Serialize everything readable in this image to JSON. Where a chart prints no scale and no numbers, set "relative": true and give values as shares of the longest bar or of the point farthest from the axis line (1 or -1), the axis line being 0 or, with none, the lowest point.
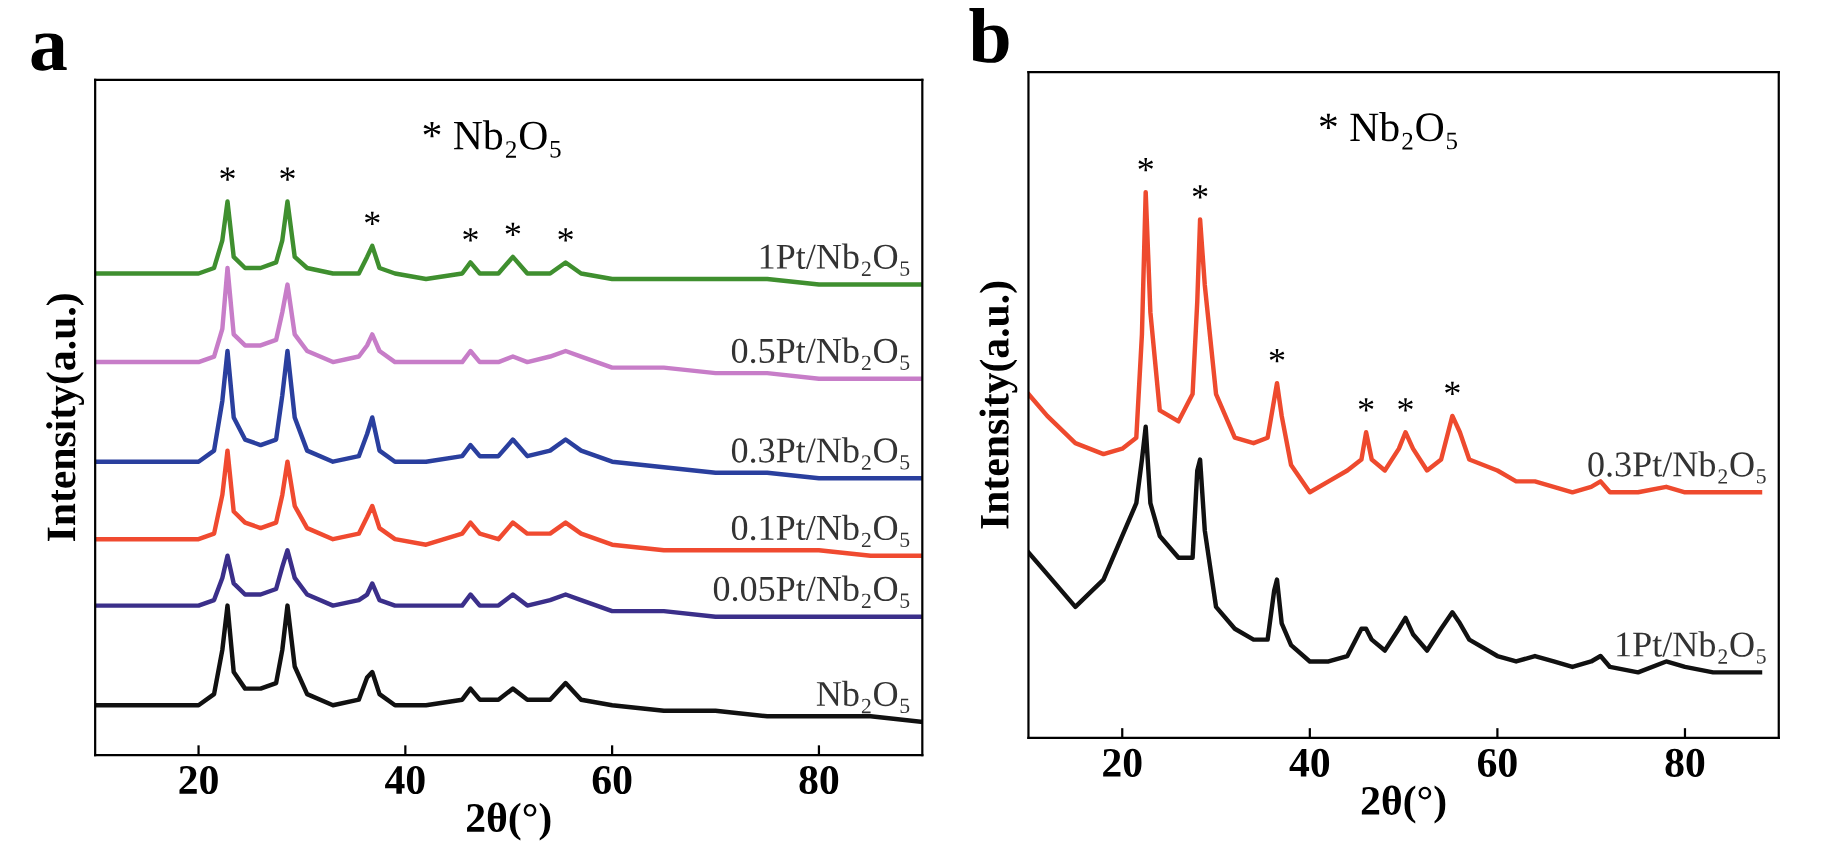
{
  "chart_data": [
    {
      "type": "line",
      "title": "a",
      "xlabel": "2θ(°)",
      "ylabel": "Intensity(a.u.)",
      "relative": true,
      "tick_labels": "x",
      "xlim": [
        10,
        90
      ],
      "xticks": [
        20,
        40,
        60,
        80
      ],
      "x": [
        10,
        15,
        20,
        21.5,
        22.3,
        22.8,
        23.4,
        24.5,
        26,
        27.5,
        28.1,
        28.6,
        29.3,
        30.5,
        33,
        35.5,
        36.3,
        36.8,
        37.5,
        39,
        42,
        45.5,
        46.3,
        47.2,
        49,
        50.4,
        51.8,
        54,
        55.5,
        57,
        60,
        65,
        70,
        75,
        80,
        85,
        90
      ],
      "series": [
        {
          "name": "1Pt/Nb₂O₅",
          "color": "#3f8f2f",
          "values": [
            0.87,
            0.87,
            0.87,
            0.88,
            0.93,
            1.0,
            0.9,
            0.88,
            0.88,
            0.89,
            0.93,
            1.0,
            0.9,
            0.88,
            0.87,
            0.87,
            0.9,
            0.92,
            0.88,
            0.87,
            0.86,
            0.87,
            0.89,
            0.87,
            0.87,
            0.9,
            0.87,
            0.87,
            0.89,
            0.87,
            0.86,
            0.86,
            0.86,
            0.86,
            0.85,
            0.85,
            0.85
          ]
        },
        {
          "name": "0.5Pt/Nb₂O₅",
          "color": "#c77dc8",
          "values": [
            0.71,
            0.71,
            0.71,
            0.72,
            0.77,
            0.88,
            0.76,
            0.74,
            0.74,
            0.75,
            0.8,
            0.85,
            0.76,
            0.73,
            0.71,
            0.72,
            0.74,
            0.76,
            0.73,
            0.71,
            0.71,
            0.71,
            0.73,
            0.71,
            0.71,
            0.72,
            0.71,
            0.72,
            0.73,
            0.72,
            0.7,
            0.7,
            0.69,
            0.69,
            0.68,
            0.68,
            0.68
          ]
        },
        {
          "name": "0.3Pt/Nb₂O₅",
          "color": "#2a3f9e",
          "values": [
            0.53,
            0.53,
            0.53,
            0.55,
            0.64,
            0.73,
            0.61,
            0.57,
            0.56,
            0.57,
            0.65,
            0.73,
            0.61,
            0.55,
            0.53,
            0.54,
            0.58,
            0.61,
            0.55,
            0.53,
            0.53,
            0.54,
            0.56,
            0.54,
            0.54,
            0.57,
            0.54,
            0.55,
            0.57,
            0.55,
            0.53,
            0.52,
            0.51,
            0.51,
            0.5,
            0.5,
            0.5
          ]
        },
        {
          "name": "0.1Pt/Nb₂O₅",
          "color": "#f04a30",
          "values": [
            0.39,
            0.39,
            0.39,
            0.4,
            0.47,
            0.55,
            0.44,
            0.42,
            0.41,
            0.42,
            0.47,
            0.53,
            0.45,
            0.41,
            0.39,
            0.4,
            0.43,
            0.45,
            0.41,
            0.39,
            0.38,
            0.4,
            0.42,
            0.4,
            0.39,
            0.42,
            0.4,
            0.4,
            0.42,
            0.4,
            0.38,
            0.37,
            0.37,
            0.37,
            0.37,
            0.36,
            0.36
          ]
        },
        {
          "name": "0.05Pt/Nb₂O₅",
          "color": "#3b2f8a",
          "values": [
            0.27,
            0.27,
            0.27,
            0.28,
            0.32,
            0.36,
            0.31,
            0.29,
            0.29,
            0.3,
            0.34,
            0.37,
            0.32,
            0.29,
            0.27,
            0.28,
            0.29,
            0.31,
            0.28,
            0.27,
            0.27,
            0.27,
            0.29,
            0.27,
            0.27,
            0.29,
            0.27,
            0.28,
            0.29,
            0.28,
            0.26,
            0.26,
            0.25,
            0.25,
            0.25,
            0.25,
            0.25
          ]
        },
        {
          "name": "Nb₂O₅",
          "color": "#111111",
          "values": [
            0.09,
            0.09,
            0.09,
            0.11,
            0.19,
            0.27,
            0.15,
            0.12,
            0.12,
            0.13,
            0.19,
            0.27,
            0.16,
            0.11,
            0.09,
            0.1,
            0.14,
            0.15,
            0.11,
            0.09,
            0.09,
            0.1,
            0.12,
            0.1,
            0.1,
            0.12,
            0.1,
            0.1,
            0.13,
            0.1,
            0.09,
            0.08,
            0.08,
            0.07,
            0.07,
            0.07,
            0.06
          ]
        }
      ],
      "annotations": [
        "* Nb₂O₅",
        {
          "text": "*",
          "x": 22.8,
          "y": 1.0
        },
        {
          "text": "*",
          "x": 28.6,
          "y": 1.0
        },
        {
          "text": "*",
          "x": 36.8,
          "y": 0.92
        },
        {
          "text": "*",
          "x": 46.3,
          "y": 0.89
        },
        {
          "text": "*",
          "x": 50.4,
          "y": 0.9
        },
        {
          "text": "*",
          "x": 55.5,
          "y": 0.89
        }
      ]
    },
    {
      "type": "line",
      "title": "b",
      "xlabel": "2θ(°)",
      "ylabel": "Intensity(a.u.)",
      "relative": true,
      "tick_labels": "x",
      "xlim": [
        10,
        90
      ],
      "xticks": [
        20,
        40,
        60,
        80
      ],
      "x": [
        10,
        12,
        15,
        18,
        20,
        21.5,
        22.1,
        22.5,
        23,
        24,
        26,
        27.5,
        28,
        28.3,
        28.8,
        30,
        32,
        34,
        35.5,
        36.2,
        36.5,
        37,
        38,
        40,
        42,
        44,
        45.5,
        46,
        46.6,
        48,
        49.5,
        50.2,
        51,
        52.5,
        54,
        55.2,
        56,
        57,
        60,
        62,
        64,
        66,
        68,
        70,
        71,
        72,
        75,
        78,
        80,
        83,
        88
      ],
      "series": [
        {
          "name": "0.3Pt/Nb₂O₅",
          "color": "#ee4a2e",
          "values": [
            0.63,
            0.59,
            0.54,
            0.52,
            0.53,
            0.55,
            0.74,
            1.0,
            0.78,
            0.6,
            0.58,
            0.63,
            0.8,
            0.95,
            0.83,
            0.63,
            0.55,
            0.54,
            0.55,
            0.62,
            0.65,
            0.59,
            0.5,
            0.45,
            0.47,
            0.49,
            0.51,
            0.56,
            0.51,
            0.49,
            0.53,
            0.56,
            0.53,
            0.49,
            0.51,
            0.59,
            0.56,
            0.51,
            0.49,
            0.47,
            0.47,
            0.46,
            0.45,
            0.46,
            0.47,
            0.45,
            0.45,
            0.46,
            0.45,
            0.45,
            0.45
          ]
        },
        {
          "name": "1Pt/Nb₂O₅",
          "color": "#111111",
          "values": [
            0.34,
            0.3,
            0.24,
            0.29,
            0.37,
            0.43,
            0.51,
            0.57,
            0.43,
            0.37,
            0.33,
            0.33,
            0.49,
            0.51,
            0.38,
            0.24,
            0.2,
            0.18,
            0.18,
            0.27,
            0.29,
            0.21,
            0.17,
            0.14,
            0.14,
            0.15,
            0.2,
            0.2,
            0.18,
            0.16,
            0.2,
            0.22,
            0.19,
            0.16,
            0.2,
            0.23,
            0.21,
            0.18,
            0.15,
            0.14,
            0.15,
            0.14,
            0.13,
            0.14,
            0.15,
            0.13,
            0.12,
            0.14,
            0.13,
            0.12,
            0.12
          ]
        }
      ],
      "annotations": [
        "* Nb₂O₅",
        {
          "text": "*",
          "x": 22.5,
          "y": 1.0
        },
        {
          "text": "*",
          "x": 28.3,
          "y": 0.95
        },
        {
          "text": "*",
          "x": 36.5,
          "y": 0.65
        },
        {
          "text": "*",
          "x": 46,
          "y": 0.56
        },
        {
          "text": "*",
          "x": 50.2,
          "y": 0.56
        },
        {
          "text": "*",
          "x": 55.2,
          "y": 0.59
        }
      ]
    }
  ]
}
